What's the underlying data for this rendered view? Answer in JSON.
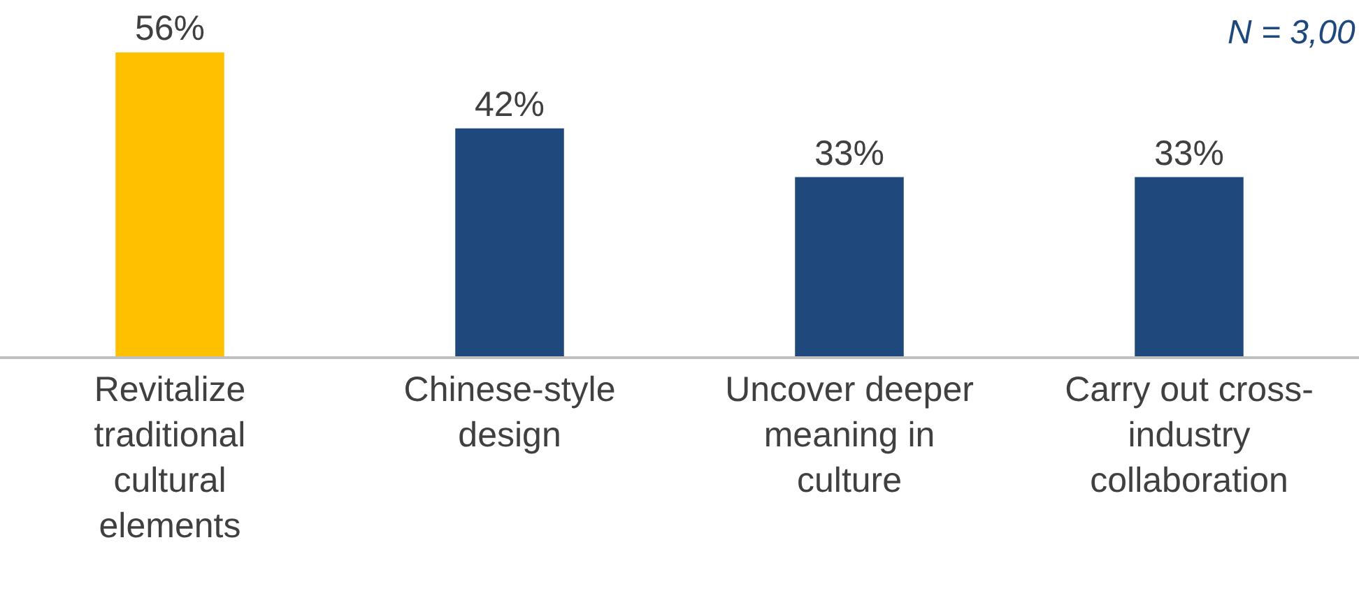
{
  "chart_data": {
    "type": "bar",
    "categories": [
      "Revitalize traditional cultural elements",
      "Chinese-style design",
      "Uncover deeper meaning in culture",
      "Carry out cross-industry collaboration"
    ],
    "values": [
      56,
      42,
      33,
      33
    ],
    "colors": [
      "#ffc000",
      "#1f497d",
      "#1f497d",
      "#1f497d"
    ],
    "value_labels": [
      "56%",
      "42%",
      "33%",
      "33%"
    ],
    "tick_labels": "x",
    "legend": false,
    "annotations": [
      "N = 3,00"
    ]
  }
}
